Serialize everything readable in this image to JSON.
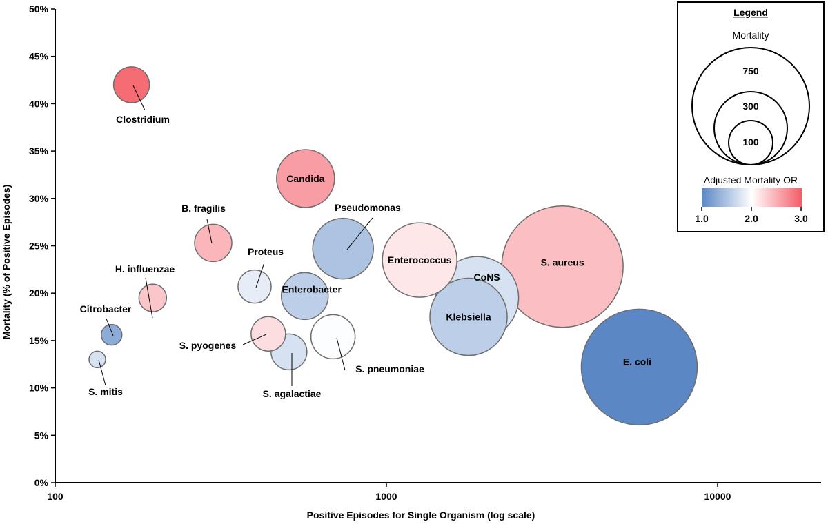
{
  "chart_data": {
    "type": "scatter",
    "subtype": "bubble",
    "xlabel": "Positive Episodes for Single Organism (log scale)",
    "ylabel": "Mortality (% of Positive Episodes)",
    "x_scale": "log",
    "xlim": [
      100,
      20000
    ],
    "ylim": [
      0,
      50
    ],
    "x_ticks": [
      "100",
      "1000",
      "10000"
    ],
    "y_ticks": [
      "0%",
      "5%",
      "10%",
      "15%",
      "20%",
      "25%",
      "30%",
      "35%",
      "40%",
      "45%",
      "50%"
    ],
    "grid": false,
    "size_encodes": "Mortality",
    "color_encodes": "Adjusted Mortality OR",
    "color_scale": {
      "low": "#5b87c5",
      "mid": "#ffffff",
      "high": "#f45c66",
      "min": 1.0,
      "max": 3.0
    },
    "points": [
      {
        "name": "Clostridium",
        "x": 170,
        "y": 42.0,
        "r": 26,
        "or": 2.9
      },
      {
        "name": "Candida",
        "x": 570,
        "y": 32.1,
        "r": 42,
        "or": 2.6
      },
      {
        "name": "B. fragilis",
        "x": 300,
        "y": 25.3,
        "r": 27,
        "or": 2.45
      },
      {
        "name": "Pseudomonas",
        "x": 740,
        "y": 24.7,
        "r": 44,
        "or": 1.5
      },
      {
        "name": "H. influenzae",
        "x": 197,
        "y": 19.5,
        "r": 20,
        "or": 2.35
      },
      {
        "name": "Proteus",
        "x": 400,
        "y": 20.7,
        "r": 24,
        "or": 1.85
      },
      {
        "name": "Enterobacter",
        "x": 567,
        "y": 19.7,
        "r": 34,
        "or": 1.6
      },
      {
        "name": "Enterococcus",
        "x": 1260,
        "y": 23.5,
        "r": 54,
        "or": 2.15
      },
      {
        "name": "CoNS",
        "x": 1880,
        "y": 19.5,
        "r": 60,
        "or": 1.75
      },
      {
        "name": "Klebsiella",
        "x": 1770,
        "y": 17.5,
        "r": 56,
        "or": 1.6
      },
      {
        "name": "S. aureus",
        "x": 3400,
        "y": 22.8,
        "r": 88,
        "or": 2.4
      },
      {
        "name": "E. coli",
        "x": 5800,
        "y": 12.2,
        "r": 84,
        "or": 1.0
      },
      {
        "name": "Citrobacter",
        "x": 148,
        "y": 15.6,
        "r": 15,
        "or": 1.3
      },
      {
        "name": "S. mitis",
        "x": 134,
        "y": 13.0,
        "r": 12,
        "or": 1.75
      },
      {
        "name": "S. pyogenes",
        "x": 440,
        "y": 15.7,
        "r": 25,
        "or": 2.2
      },
      {
        "name": "S. agalactiae",
        "x": 508,
        "y": 13.8,
        "r": 26,
        "or": 1.75
      },
      {
        "name": "S. pneumoniae",
        "x": 690,
        "y": 15.4,
        "r": 32,
        "or": 1.98
      }
    ],
    "legend": {
      "title": "Legend",
      "size_title": "Mortality",
      "size_values": [
        "750",
        "300",
        "100"
      ],
      "color_title": "Adjusted Mortality OR",
      "color_ticks": [
        "1.0",
        "2.0",
        "3.0"
      ]
    }
  }
}
